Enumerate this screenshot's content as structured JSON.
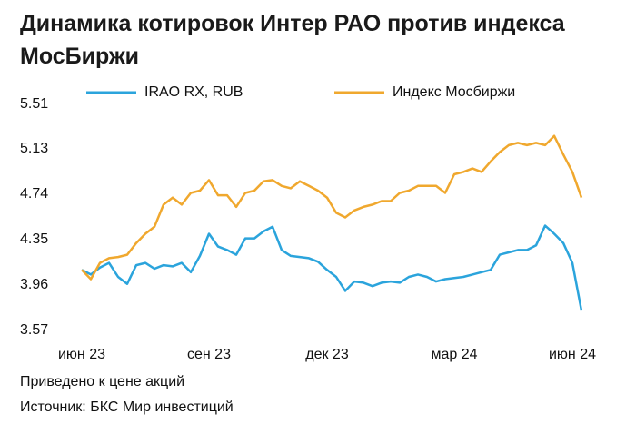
{
  "chart_data": {
    "type": "line",
    "title": "Динамика котировок Интер РАО против индекса МосБиржи",
    "notes": [
      "Приведено к цене акций",
      "Источник: БКС Мир инвестиций"
    ],
    "categories": [
      "июн 23",
      null,
      null,
      null,
      null,
      null,
      null,
      null,
      null,
      null,
      null,
      null,
      null,
      null,
      "сен 23",
      null,
      null,
      null,
      null,
      null,
      null,
      null,
      null,
      null,
      null,
      null,
      null,
      "дек 23",
      null,
      null,
      null,
      null,
      null,
      null,
      null,
      null,
      null,
      null,
      null,
      null,
      null,
      "мар 24",
      null,
      null,
      null,
      null,
      null,
      null,
      null,
      null,
      null,
      null,
      null,
      null,
      "июн 24",
      null
    ],
    "series": [
      {
        "name": "IRAO RX, RUB",
        "color": "#2ba4dc",
        "values": [
          4.09,
          4.05,
          4.11,
          4.15,
          4.03,
          3.97,
          4.13,
          4.15,
          4.1,
          4.13,
          4.12,
          4.15,
          4.07,
          4.21,
          4.4,
          4.29,
          4.26,
          4.22,
          4.36,
          4.36,
          4.42,
          4.46,
          4.26,
          4.21,
          4.2,
          4.19,
          4.16,
          4.09,
          4.03,
          3.91,
          3.99,
          3.98,
          3.95,
          3.98,
          3.99,
          3.98,
          4.03,
          4.05,
          4.03,
          3.99,
          4.01,
          4.02,
          4.03,
          4.05,
          4.07,
          4.09,
          4.22,
          4.24,
          4.26,
          4.26,
          4.3,
          4.47,
          4.4,
          4.32,
          4.15,
          3.74
        ]
      },
      {
        "name": "Индекс Мосбиржи",
        "color": "#f0a82e",
        "values": [
          4.09,
          4.01,
          4.15,
          4.19,
          4.2,
          4.22,
          4.32,
          4.4,
          4.46,
          4.65,
          4.71,
          4.65,
          4.75,
          4.77,
          4.86,
          4.73,
          4.73,
          4.63,
          4.75,
          4.77,
          4.85,
          4.86,
          4.81,
          4.79,
          4.85,
          4.81,
          4.77,
          4.71,
          4.58,
          4.54,
          4.6,
          4.63,
          4.65,
          4.68,
          4.68,
          4.75,
          4.77,
          4.81,
          4.81,
          4.81,
          4.75,
          4.91,
          4.93,
          4.96,
          4.93,
          5.02,
          5.1,
          5.16,
          5.18,
          5.16,
          5.18,
          5.16,
          5.24,
          5.08,
          4.93,
          4.71
        ]
      }
    ],
    "ylim": [
      3.57,
      5.51
    ],
    "yticks": [
      3.57,
      3.96,
      4.35,
      4.74,
      5.13,
      5.51
    ]
  }
}
